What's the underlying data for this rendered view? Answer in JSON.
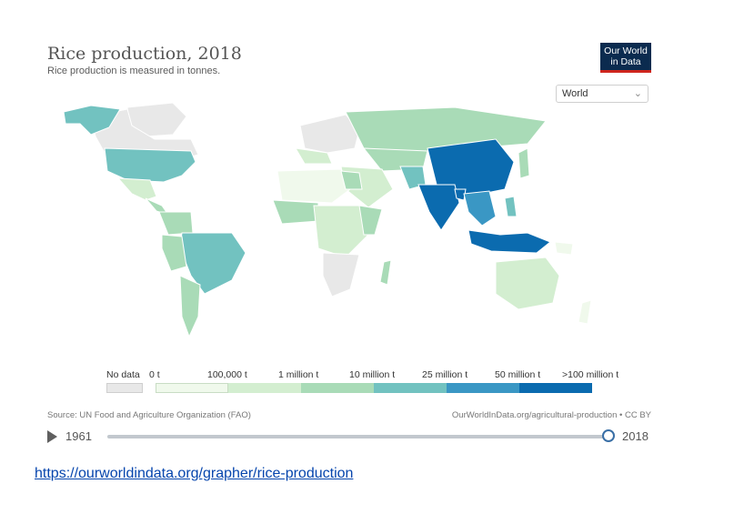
{
  "header": {
    "title": "Rice production, 2018",
    "subtitle": "Rice production is measured in tonnes."
  },
  "logo": {
    "line1": "Our World",
    "line2": "in Data"
  },
  "region_select": {
    "value": "World"
  },
  "legend": {
    "no_data_label": "No data",
    "bins": [
      "0 t",
      "100,000 t",
      "1 million t",
      "10 million t",
      "25 million t",
      "50 million t",
      ">100 million t"
    ],
    "colors": [
      "#f0f9ec",
      "#d3eed0",
      "#a9dbb7",
      "#72c2c0",
      "#3a97c4",
      "#0b6baf"
    ]
  },
  "footer": {
    "source": "Source: UN Food and Agriculture Organization (FAO)",
    "url": "OurWorldInData.org/agricultural-production • CC BY"
  },
  "timeline": {
    "start_year": "1961",
    "end_year": "2018",
    "current_year": 2018
  },
  "link": {
    "text": "https://ourworldindata.org/grapher/rice-production"
  },
  "colors": {
    "no_data": "#e8e8e8",
    "land_low": "#d3eed0",
    "land_mid": "#a9dbb7",
    "land_high": "#72c2c0",
    "land_max": "#0b6baf"
  }
}
